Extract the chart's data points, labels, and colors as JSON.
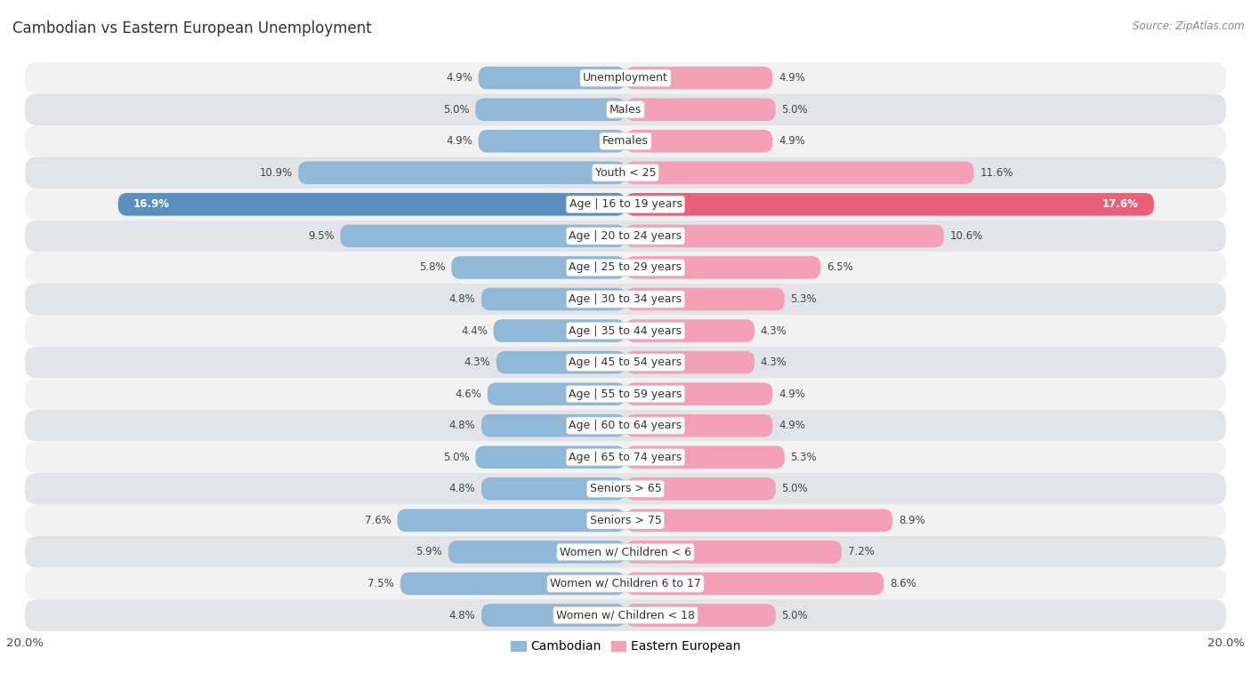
{
  "title": "Cambodian vs Eastern European Unemployment",
  "source": "Source: ZipAtlas.com",
  "categories": [
    "Unemployment",
    "Males",
    "Females",
    "Youth < 25",
    "Age | 16 to 19 years",
    "Age | 20 to 24 years",
    "Age | 25 to 29 years",
    "Age | 30 to 34 years",
    "Age | 35 to 44 years",
    "Age | 45 to 54 years",
    "Age | 55 to 59 years",
    "Age | 60 to 64 years",
    "Age | 65 to 74 years",
    "Seniors > 65",
    "Seniors > 75",
    "Women w/ Children < 6",
    "Women w/ Children 6 to 17",
    "Women w/ Children < 18"
  ],
  "cambodian": [
    4.9,
    5.0,
    4.9,
    10.9,
    16.9,
    9.5,
    5.8,
    4.8,
    4.4,
    4.3,
    4.6,
    4.8,
    5.0,
    4.8,
    7.6,
    5.9,
    7.5,
    4.8
  ],
  "eastern_european": [
    4.9,
    5.0,
    4.9,
    11.6,
    17.6,
    10.6,
    6.5,
    5.3,
    4.3,
    4.3,
    4.9,
    4.9,
    5.3,
    5.0,
    8.9,
    7.2,
    8.6,
    5.0
  ],
  "cambodian_color": "#92b8d8",
  "eastern_european_color": "#f4a0b8",
  "highlight_cambodian_color": "#5b8fbf",
  "highlight_eastern_european_color": "#e8607a",
  "row_bg_even": "#f2f2f2",
  "row_bg_odd": "#e2e4e8",
  "max_value": 20.0,
  "label_fontsize": 9.0,
  "title_fontsize": 12,
  "source_fontsize": 8.5,
  "value_fontsize": 8.5
}
